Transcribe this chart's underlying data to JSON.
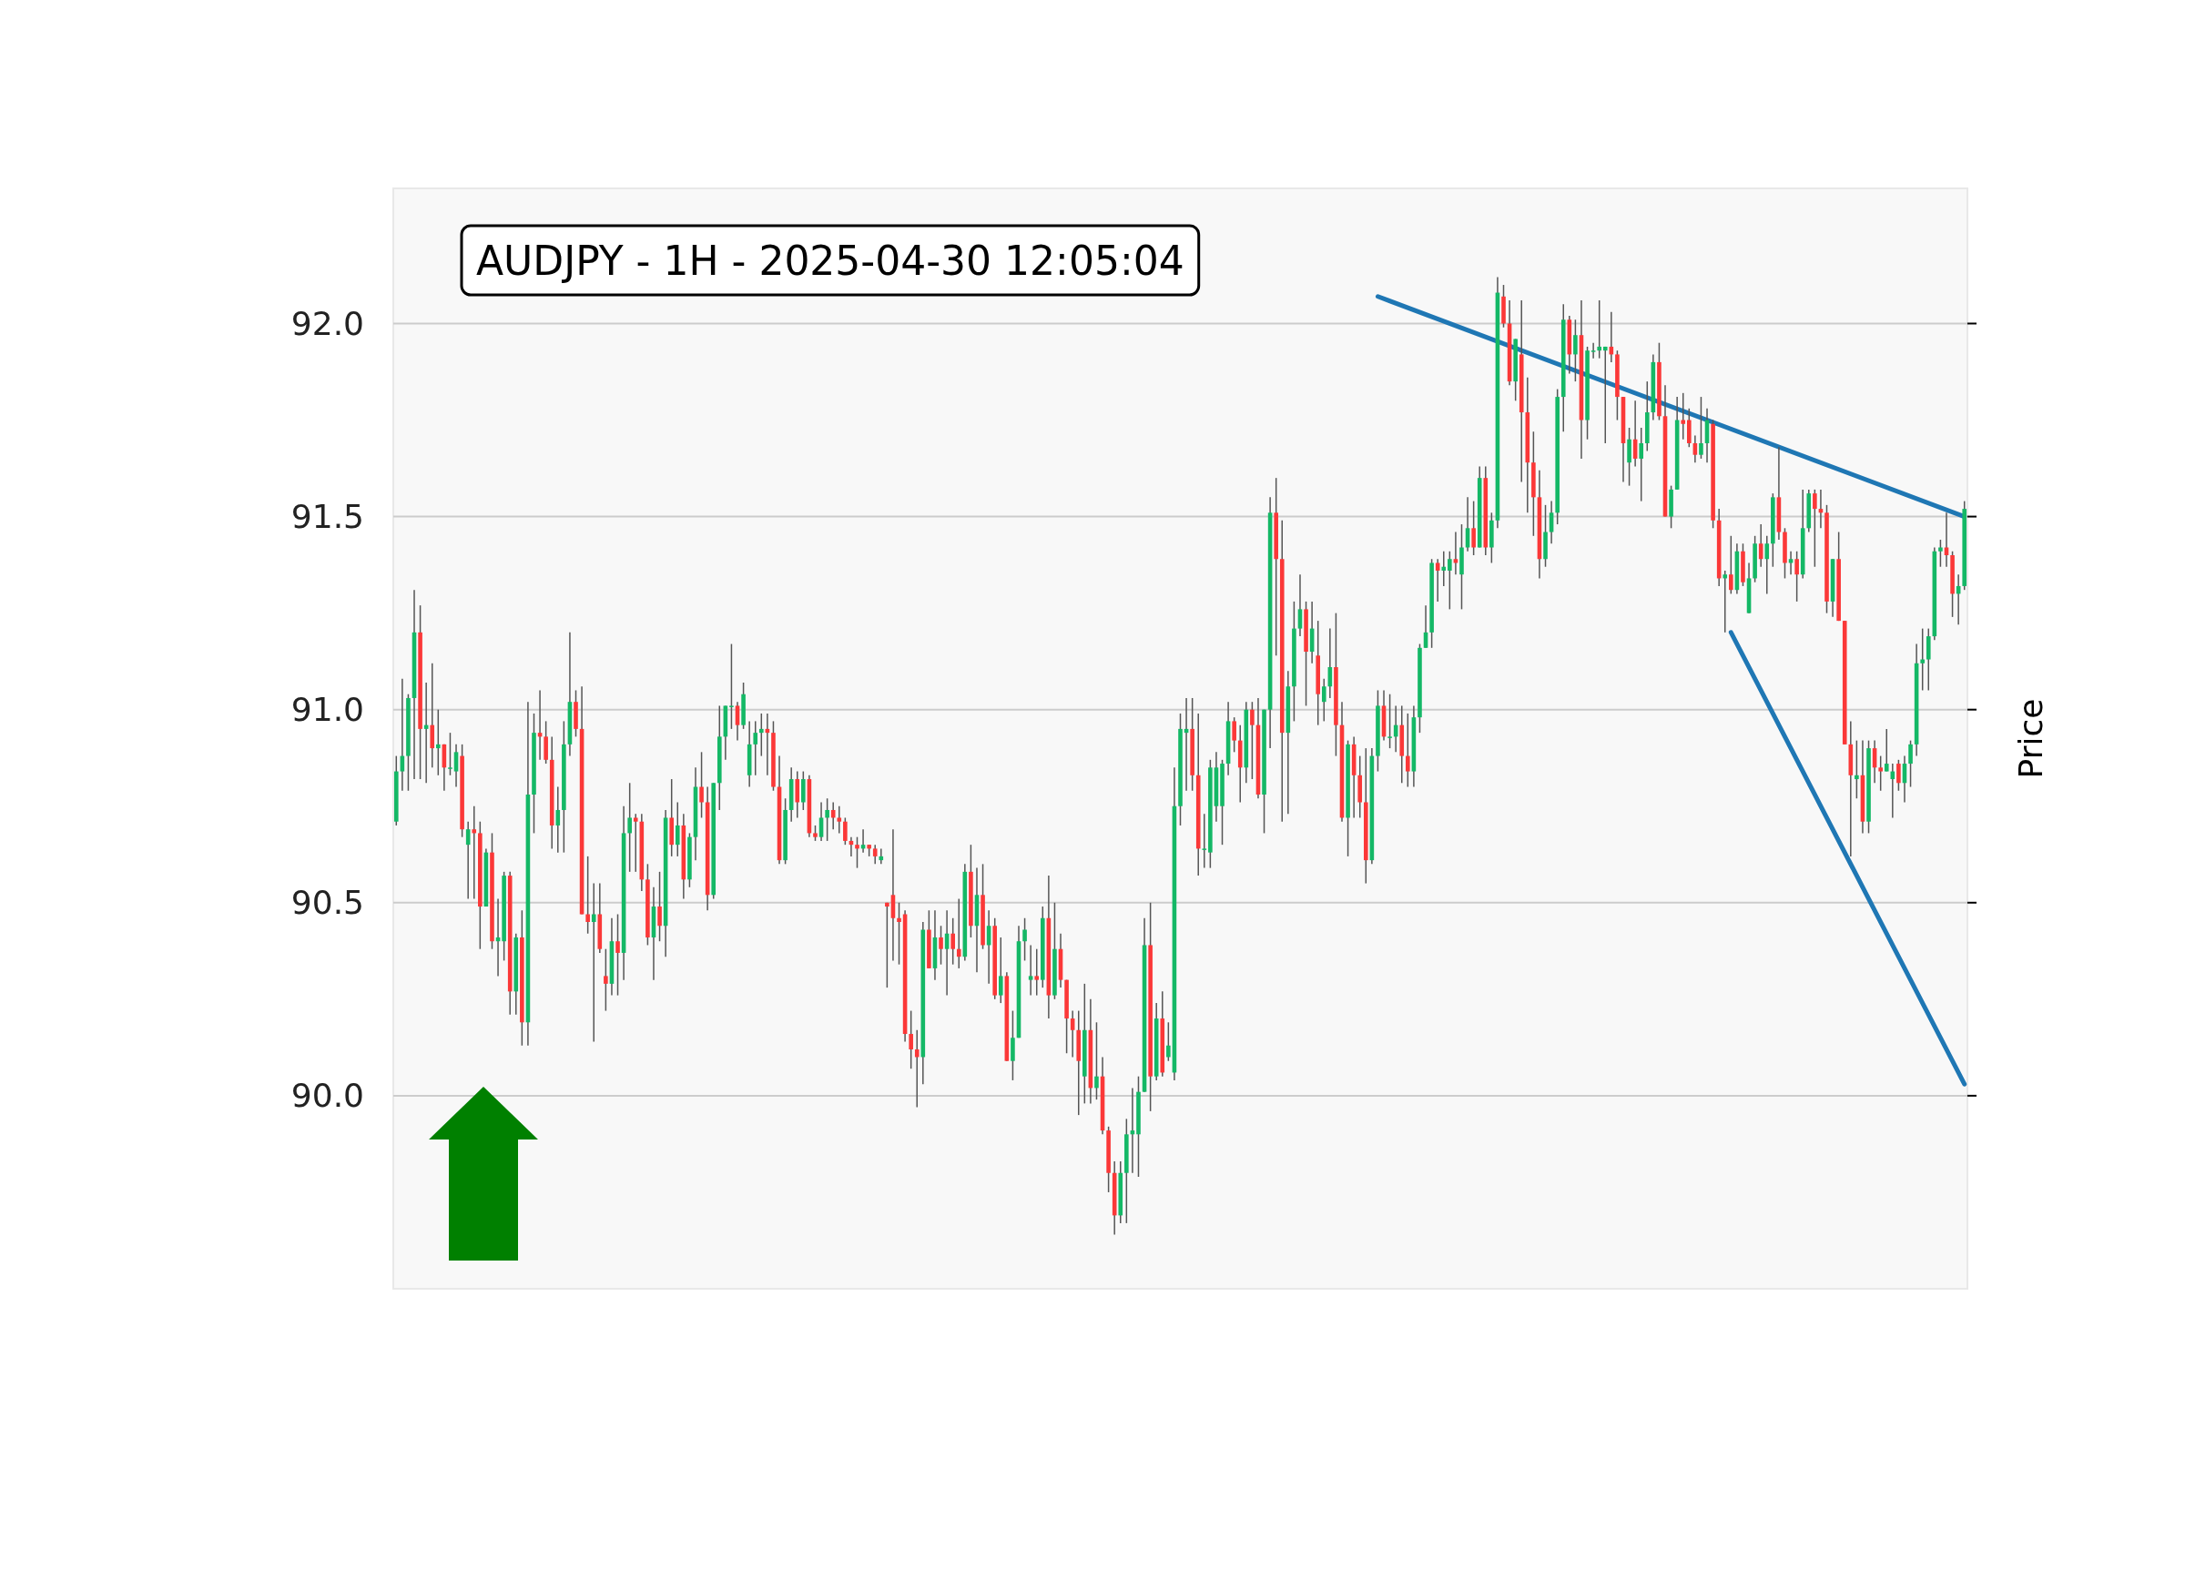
{
  "chart_data": {
    "type": "candlestick",
    "title": "AUDJPY - 1H - 2025-04-30 12:05:04",
    "ylabel": "Price",
    "ylim": [
      89.5,
      92.35
    ],
    "yticks": [
      {
        "value": 90,
        "label": "90.0"
      },
      {
        "value": 90.5,
        "label": "90.5"
      },
      {
        "value": 91,
        "label": "91.0"
      },
      {
        "value": 91.5,
        "label": "91.5"
      },
      {
        "value": 92,
        "label": "92.0"
      }
    ],
    "grid": "y",
    "tick_labels": "y",
    "categories": [
      null,
      null,
      null,
      null,
      null,
      null,
      null,
      null,
      null,
      null,
      null,
      null,
      null,
      null,
      null,
      null,
      null,
      null,
      null,
      null,
      null,
      null,
      null,
      null,
      null,
      null,
      null,
      null,
      null,
      null,
      null,
      null,
      null,
      null,
      null,
      null,
      null,
      null,
      null,
      null,
      null,
      null,
      null,
      null,
      null,
      null,
      null,
      null,
      null,
      null,
      null,
      null,
      null,
      null,
      null,
      null,
      null,
      null,
      null,
      null,
      null,
      null,
      null,
      null,
      null,
      null,
      null,
      null,
      null,
      null,
      null,
      null,
      null,
      null,
      null,
      null,
      null,
      null,
      null,
      null,
      null,
      null,
      null,
      null,
      null,
      null,
      null,
      null,
      null,
      null,
      null,
      null,
      null,
      null,
      null,
      null,
      null,
      null,
      null,
      null,
      null,
      null,
      null,
      null,
      null,
      null,
      null,
      null,
      null,
      null,
      null,
      null,
      null,
      null,
      null,
      null,
      null,
      null,
      null,
      null,
      null,
      null,
      null,
      null,
      null,
      null,
      null,
      null,
      null,
      null,
      null,
      null,
      null,
      null,
      null,
      null,
      null,
      null,
      null,
      null,
      null,
      null,
      null,
      null,
      null,
      null,
      null,
      null,
      null,
      null,
      null,
      null,
      null,
      null,
      null,
      null,
      null,
      null,
      null,
      null,
      null,
      null,
      null,
      null,
      null,
      null,
      null,
      null,
      null,
      null,
      null,
      null,
      null,
      null,
      null,
      null,
      null,
      null,
      null,
      null,
      null,
      null,
      null,
      null,
      null,
      null,
      null,
      null,
      null,
      null,
      null,
      null,
      null,
      null,
      null,
      null,
      null,
      null,
      null,
      null,
      null,
      null,
      null,
      null,
      null,
      null,
      null,
      null,
      null,
      null,
      null,
      null,
      null,
      null,
      null,
      null,
      null,
      null,
      null,
      null,
      null,
      null,
      null,
      null,
      null,
      null,
      null,
      null,
      null,
      null,
      null,
      null,
      null,
      null,
      null,
      null,
      null,
      null,
      null,
      null,
      null,
      null,
      null,
      null,
      null,
      null,
      null,
      null,
      null,
      null,
      null,
      null,
      null,
      null,
      null,
      null,
      null,
      null,
      null,
      null,
      null,
      null,
      null
    ],
    "ohlc": [
      [
        90.71,
        90.88,
        90.7,
        90.84
      ],
      [
        90.84,
        91.08,
        90.79,
        90.88
      ],
      [
        90.88,
        91.04,
        90.79,
        91.03
      ],
      [
        91.03,
        91.31,
        90.82,
        91.2
      ],
      [
        91.2,
        91.27,
        90.82,
        90.95
      ],
      [
        90.95,
        91.07,
        90.81,
        90.96
      ],
      [
        90.96,
        91.12,
        90.85,
        90.9
      ],
      [
        90.9,
        91.0,
        90.83,
        90.91
      ],
      [
        90.91,
        90.91,
        90.79,
        90.85
      ],
      [
        90.85,
        90.94,
        90.83,
        90.85
      ],
      [
        90.84,
        90.91,
        90.8,
        90.89
      ],
      [
        90.88,
        90.91,
        90.67,
        90.69
      ],
      [
        90.65,
        90.71,
        90.51,
        90.69
      ],
      [
        90.69,
        90.75,
        90.51,
        90.68
      ],
      [
        90.68,
        90.71,
        90.38,
        90.49
      ],
      [
        90.49,
        90.64,
        90.49,
        90.63
      ],
      [
        90.63,
        90.68,
        90.38,
        90.4
      ],
      [
        90.4,
        90.51,
        90.31,
        90.41
      ],
      [
        90.4,
        90.58,
        90.35,
        90.57
      ],
      [
        90.57,
        90.58,
        90.21,
        90.27
      ],
      [
        90.27,
        90.42,
        90.21,
        90.41
      ],
      [
        90.41,
        90.48,
        90.13,
        90.19
      ],
      [
        90.19,
        91.02,
        90.13,
        90.78
      ],
      [
        90.78,
        90.99,
        90.68,
        90.94
      ],
      [
        90.94,
        91.05,
        90.87,
        90.93
      ],
      [
        90.93,
        90.97,
        90.86,
        90.87
      ],
      [
        90.87,
        90.93,
        90.64,
        90.7
      ],
      [
        90.7,
        90.8,
        90.63,
        90.74
      ],
      [
        90.74,
        90.97,
        90.63,
        90.91
      ],
      [
        90.91,
        91.2,
        90.88,
        91.02
      ],
      [
        91.02,
        91.05,
        90.93,
        90.95
      ],
      [
        90.95,
        91.06,
        90.47,
        90.47
      ],
      [
        90.47,
        90.62,
        90.42,
        90.45
      ],
      [
        90.45,
        90.55,
        90.14,
        90.47
      ],
      [
        90.47,
        90.55,
        90.37,
        90.38
      ],
      [
        90.31,
        90.38,
        90.22,
        90.29
      ],
      [
        90.29,
        90.46,
        90.26,
        90.4
      ],
      [
        90.4,
        90.47,
        90.26,
        90.37
      ],
      [
        90.37,
        90.75,
        90.3,
        90.68
      ],
      [
        90.68,
        90.81,
        90.58,
        90.72
      ],
      [
        90.72,
        90.73,
        90.58,
        90.71
      ],
      [
        90.71,
        90.73,
        90.53,
        90.56
      ],
      [
        90.56,
        90.6,
        90.39,
        90.41
      ],
      [
        90.41,
        90.54,
        90.3,
        90.49
      ],
      [
        90.49,
        90.58,
        90.4,
        90.44
      ],
      [
        90.44,
        90.74,
        90.36,
        90.72
      ],
      [
        90.72,
        90.82,
        90.62,
        90.65
      ],
      [
        90.65,
        90.76,
        90.62,
        90.7
      ],
      [
        90.7,
        90.73,
        90.51,
        90.56
      ],
      [
        90.56,
        90.68,
        90.54,
        90.67
      ],
      [
        90.67,
        90.85,
        90.61,
        90.8
      ],
      [
        90.8,
        90.89,
        90.72,
        90.76
      ],
      [
        90.76,
        90.8,
        90.48,
        90.52
      ],
      [
        90.52,
        90.81,
        90.51,
        90.81
      ],
      [
        90.81,
        91.01,
        90.74,
        90.93
      ],
      [
        90.93,
        91.01,
        90.87,
        91.01
      ],
      [
        91.01,
        91.17,
        90.95,
        91.01
      ],
      [
        91.01,
        91.02,
        90.92,
        90.96
      ],
      [
        90.96,
        91.07,
        90.95,
        91.04
      ],
      [
        90.83,
        90.97,
        90.8,
        90.91
      ],
      [
        90.91,
        90.97,
        90.83,
        90.94
      ],
      [
        90.94,
        90.99,
        90.88,
        90.95
      ],
      [
        90.95,
        90.99,
        90.83,
        90.94
      ],
      [
        90.94,
        90.97,
        90.79,
        90.8
      ],
      [
        90.8,
        90.88,
        90.6,
        90.61
      ],
      [
        90.61,
        90.77,
        90.6,
        90.74
      ],
      [
        90.74,
        90.85,
        90.71,
        90.82
      ],
      [
        90.82,
        90.84,
        90.72,
        90.76
      ],
      [
        90.76,
        90.84,
        90.74,
        90.82
      ],
      [
        90.82,
        90.83,
        90.67,
        90.68
      ],
      [
        90.68,
        90.7,
        90.66,
        90.67
      ],
      [
        90.67,
        90.76,
        90.66,
        90.72
      ],
      [
        90.72,
        90.77,
        90.66,
        90.74
      ],
      [
        90.74,
        90.76,
        90.69,
        90.72
      ],
      [
        90.72,
        90.75,
        90.68,
        90.71
      ],
      [
        90.71,
        90.72,
        90.65,
        90.66
      ],
      [
        90.66,
        90.67,
        90.62,
        90.65
      ],
      [
        90.65,
        90.67,
        90.59,
        90.64
      ],
      [
        90.64,
        90.69,
        90.63,
        90.65
      ],
      [
        90.65,
        90.65,
        90.62,
        90.64
      ],
      [
        90.64,
        90.65,
        90.6,
        90.62
      ],
      [
        90.61,
        90.64,
        90.6,
        90.62
      ],
      [
        90.5,
        90.5,
        90.28,
        90.49
      ],
      [
        90.52,
        90.69,
        90.35,
        90.46
      ],
      [
        90.46,
        90.5,
        90.34,
        90.45
      ],
      [
        90.47,
        90.48,
        90.14,
        90.16
      ],
      [
        90.16,
        90.22,
        90.07,
        90.12
      ],
      [
        90.12,
        90.17,
        89.97,
        90.1
      ],
      [
        90.1,
        90.45,
        90.03,
        90.43
      ],
      [
        90.43,
        90.48,
        90.33,
        90.33
      ],
      [
        90.33,
        90.48,
        90.3,
        90.41
      ],
      [
        90.41,
        90.44,
        90.34,
        90.38
      ],
      [
        90.38,
        90.48,
        90.26,
        90.42
      ],
      [
        90.42,
        90.46,
        90.34,
        90.38
      ],
      [
        90.38,
        90.51,
        90.33,
        90.36
      ],
      [
        90.36,
        90.6,
        90.35,
        90.58
      ],
      [
        90.58,
        90.65,
        90.41,
        90.44
      ],
      [
        90.44,
        90.59,
        90.32,
        90.52
      ],
      [
        90.52,
        90.6,
        90.38,
        90.39
      ],
      [
        90.39,
        90.48,
        90.29,
        90.44
      ],
      [
        90.44,
        90.46,
        90.25,
        90.26
      ],
      [
        90.26,
        90.41,
        90.24,
        90.31
      ],
      [
        90.31,
        90.32,
        90.09,
        90.09
      ],
      [
        90.09,
        90.22,
        90.04,
        90.15
      ],
      [
        90.15,
        90.44,
        90.15,
        90.4
      ],
      [
        90.4,
        90.46,
        90.35,
        90.43
      ],
      [
        90.3,
        90.39,
        90.26,
        90.31
      ],
      [
        90.31,
        90.38,
        90.26,
        90.3
      ],
      [
        90.3,
        90.49,
        90.28,
        90.46
      ],
      [
        90.46,
        90.57,
        90.2,
        90.26
      ],
      [
        90.26,
        90.5,
        90.25,
        90.38
      ],
      [
        90.38,
        90.42,
        90.28,
        90.3
      ],
      [
        90.3,
        90.3,
        90.11,
        90.2
      ],
      [
        90.2,
        90.22,
        90.1,
        90.17
      ],
      [
        90.17,
        90.22,
        89.95,
        90.09
      ],
      [
        90.05,
        90.29,
        89.98,
        90.17
      ],
      [
        90.17,
        90.25,
        89.98,
        90.02
      ],
      [
        90.02,
        90.19,
        89.99,
        90.05
      ],
      [
        90.05,
        90.1,
        89.9,
        89.91
      ],
      [
        89.91,
        89.92,
        89.75,
        89.8
      ],
      [
        89.8,
        89.83,
        89.64,
        89.69
      ],
      [
        89.69,
        89.83,
        89.67,
        89.8
      ],
      [
        89.8,
        89.94,
        89.67,
        89.9
      ],
      [
        89.9,
        90.02,
        89.8,
        89.91
      ],
      [
        89.9,
        90.05,
        89.79,
        90.01
      ],
      [
        90.01,
        90.46,
        90.01,
        90.39
      ],
      [
        90.39,
        90.5,
        89.96,
        90.05
      ],
      [
        90.05,
        90.24,
        90.04,
        90.2
      ],
      [
        90.2,
        90.27,
        90.05,
        90.06
      ],
      [
        90.1,
        90.19,
        90.09,
        90.13
      ],
      [
        90.06,
        90.85,
        90.04,
        90.75
      ],
      [
        90.75,
        90.99,
        90.7,
        90.95
      ],
      [
        90.94,
        91.03,
        90.79,
        90.95
      ],
      [
        90.95,
        91.03,
        90.79,
        90.83
      ],
      [
        90.83,
        90.99,
        90.57,
        90.64
      ],
      [
        90.64,
        90.73,
        90.59,
        90.64
      ],
      [
        90.63,
        90.87,
        90.59,
        90.85
      ],
      [
        90.75,
        90.89,
        90.71,
        90.85
      ],
      [
        90.75,
        90.87,
        90.65,
        90.86
      ],
      [
        90.86,
        91.02,
        90.83,
        90.97
      ],
      [
        90.97,
        90.98,
        90.89,
        90.92
      ],
      [
        90.92,
        90.96,
        90.76,
        90.85
      ],
      [
        90.85,
        91.02,
        90.81,
        91.0
      ],
      [
        91.0,
        91.02,
        90.82,
        90.96
      ],
      [
        90.96,
        91.03,
        90.77,
        90.78
      ],
      [
        90.78,
        91.0,
        90.68,
        91.0
      ],
      [
        91.0,
        91.55,
        90.9,
        91.51
      ],
      [
        91.51,
        91.6,
        91.14,
        91.39
      ],
      [
        91.39,
        91.49,
        90.71,
        90.94
      ],
      [
        90.94,
        91.1,
        90.73,
        91.06
      ],
      [
        91.06,
        91.28,
        90.97,
        91.21
      ],
      [
        91.21,
        91.35,
        91.19,
        91.26
      ],
      [
        91.26,
        91.28,
        91.01,
        91.15
      ],
      [
        91.15,
        91.28,
        91.12,
        91.21
      ],
      [
        91.14,
        91.23,
        90.96,
        91.04
      ],
      [
        91.02,
        91.08,
        90.97,
        91.06
      ],
      [
        91.06,
        91.21,
        91.03,
        91.11
      ],
      [
        91.11,
        91.25,
        90.88,
        90.96
      ],
      [
        90.96,
        91.02,
        90.71,
        90.72
      ],
      [
        90.72,
        90.92,
        90.62,
        90.91
      ],
      [
        90.91,
        90.93,
        90.72,
        90.83
      ],
      [
        90.83,
        90.88,
        90.72,
        90.76
      ],
      [
        90.76,
        90.9,
        90.55,
        90.61
      ],
      [
        90.61,
        90.9,
        90.6,
        90.88
      ],
      [
        90.88,
        91.05,
        90.84,
        91.01
      ],
      [
        91.01,
        91.05,
        90.92,
        90.93
      ],
      [
        90.93,
        91.04,
        90.9,
        90.93
      ],
      [
        90.93,
        91.01,
        90.89,
        90.96
      ],
      [
        90.96,
        91.01,
        90.81,
        90.88
      ],
      [
        90.88,
        90.99,
        90.8,
        90.84
      ],
      [
        90.84,
        91.01,
        90.8,
        90.98
      ],
      [
        90.98,
        91.17,
        90.94,
        91.16
      ],
      [
        91.16,
        91.27,
        91.16,
        91.2
      ],
      [
        91.2,
        91.39,
        91.16,
        91.38
      ],
      [
        91.38,
        91.39,
        91.28,
        91.36
      ],
      [
        91.36,
        91.41,
        91.32,
        91.37
      ],
      [
        91.36,
        91.41,
        91.26,
        91.39
      ],
      [
        91.39,
        91.46,
        91.35,
        91.38
      ],
      [
        91.35,
        91.48,
        91.26,
        91.42
      ],
      [
        91.42,
        91.55,
        91.41,
        91.47
      ],
      [
        91.47,
        91.54,
        91.4,
        91.42
      ],
      [
        91.42,
        91.63,
        91.42,
        91.6
      ],
      [
        91.6,
        91.63,
        91.4,
        91.42
      ],
      [
        91.42,
        91.51,
        91.38,
        91.49
      ],
      [
        91.49,
        92.12,
        91.47,
        92.08
      ],
      [
        92.07,
        92.1,
        91.99,
        92.0
      ],
      [
        92.0,
        92.06,
        91.84,
        91.85
      ],
      [
        91.85,
        91.96,
        91.8,
        91.96
      ],
      [
        91.92,
        92.06,
        91.59,
        91.77
      ],
      [
        91.77,
        91.86,
        91.51,
        91.64
      ],
      [
        91.64,
        91.72,
        91.45,
        91.55
      ],
      [
        91.55,
        91.62,
        91.34,
        91.39
      ],
      [
        91.39,
        91.53,
        91.37,
        91.46
      ],
      [
        91.46,
        91.54,
        91.43,
        91.51
      ],
      [
        91.51,
        91.83,
        91.48,
        91.81
      ],
      [
        91.81,
        92.05,
        91.72,
        92.01
      ],
      [
        92.01,
        92.02,
        91.87,
        91.92
      ],
      [
        91.92,
        92.01,
        91.85,
        91.97
      ],
      [
        91.97,
        92.06,
        91.65,
        91.75
      ],
      [
        91.75,
        91.94,
        91.7,
        91.93
      ],
      [
        91.93,
        91.95,
        91.91,
        91.93
      ],
      [
        91.93,
        92.06,
        91.91,
        91.94
      ],
      [
        91.93,
        91.94,
        91.69,
        91.94
      ],
      [
        91.94,
        92.03,
        91.9,
        91.92
      ],
      [
        91.92,
        91.93,
        91.75,
        91.81
      ],
      [
        91.81,
        91.81,
        91.59,
        91.69
      ],
      [
        91.64,
        91.73,
        91.58,
        91.7
      ],
      [
        91.7,
        91.8,
        91.63,
        91.65
      ],
      [
        91.65,
        91.73,
        91.54,
        91.69
      ],
      [
        91.69,
        91.85,
        91.67,
        91.77
      ],
      [
        91.77,
        91.92,
        91.75,
        91.9
      ],
      [
        91.9,
        91.95,
        91.75,
        91.76
      ],
      [
        91.76,
        91.84,
        91.5,
        91.5
      ],
      [
        91.5,
        91.58,
        91.47,
        91.57
      ],
      [
        91.57,
        91.81,
        91.57,
        91.75
      ],
      [
        91.75,
        91.82,
        91.7,
        91.74
      ],
      [
        91.75,
        91.78,
        91.68,
        91.69
      ],
      [
        91.69,
        91.71,
        91.64,
        91.66
      ],
      [
        91.66,
        91.81,
        91.65,
        91.69
      ],
      [
        91.69,
        91.78,
        91.64,
        91.75
      ],
      [
        91.74,
        91.75,
        91.47,
        91.49
      ],
      [
        91.49,
        91.52,
        91.32,
        91.34
      ],
      [
        91.34,
        91.36,
        91.2,
        91.35
      ],
      [
        91.35,
        91.45,
        91.3,
        91.31
      ],
      [
        91.31,
        91.43,
        91.3,
        91.41
      ],
      [
        91.41,
        91.43,
        91.32,
        91.33
      ],
      [
        91.25,
        91.38,
        91.25,
        91.34
      ],
      [
        91.34,
        91.45,
        91.33,
        91.43
      ],
      [
        91.43,
        91.48,
        91.37,
        91.39
      ],
      [
        91.39,
        91.45,
        91.3,
        91.43
      ],
      [
        91.43,
        91.56,
        91.37,
        91.55
      ],
      [
        91.55,
        91.68,
        91.44,
        91.46
      ],
      [
        91.46,
        91.47,
        91.34,
        91.38
      ],
      [
        91.38,
        91.41,
        91.35,
        91.39
      ],
      [
        91.39,
        91.41,
        91.28,
        91.35
      ],
      [
        91.35,
        91.57,
        91.34,
        91.47
      ],
      [
        91.47,
        91.57,
        91.46,
        91.56
      ],
      [
        91.56,
        91.57,
        91.37,
        91.52
      ],
      [
        91.52,
        91.57,
        91.47,
        91.51
      ],
      [
        91.51,
        91.53,
        91.25,
        91.28
      ],
      [
        91.28,
        91.39,
        91.24,
        91.39
      ],
      [
        91.39,
        91.46,
        91.23,
        91.23
      ],
      [
        91.23,
        91.23,
        90.91,
        90.91
      ],
      [
        90.91,
        90.97,
        90.62,
        90.83
      ],
      [
        90.82,
        90.92,
        90.77,
        90.83
      ],
      [
        90.83,
        90.92,
        90.68,
        90.71
      ],
      [
        90.71,
        90.92,
        90.68,
        90.9
      ],
      [
        90.9,
        90.92,
        90.81,
        90.85
      ],
      [
        90.85,
        90.88,
        90.79,
        90.84
      ],
      [
        90.84,
        90.95,
        90.84,
        90.86
      ],
      [
        90.82,
        90.86,
        90.72,
        90.84
      ],
      [
        90.86,
        90.87,
        90.79,
        90.81
      ],
      [
        90.81,
        90.88,
        90.76,
        90.86
      ],
      [
        90.86,
        90.92,
        90.8,
        90.91
      ],
      [
        90.91,
        91.17,
        90.88,
        91.12
      ],
      [
        91.12,
        91.21,
        91.05,
        91.13
      ],
      [
        91.13,
        91.21,
        91.05,
        91.19
      ],
      [
        91.19,
        91.42,
        91.18,
        91.41
      ],
      [
        91.41,
        91.44,
        91.37,
        91.42
      ],
      [
        91.42,
        91.51,
        91.37,
        91.4
      ],
      [
        91.4,
        91.41,
        91.24,
        91.3
      ],
      [
        91.3,
        91.35,
        91.22,
        91.32
      ],
      [
        91.32,
        91.54,
        91.31,
        91.52
      ]
    ],
    "series": [
      {
        "type": "line",
        "color": "#1f77b4",
        "values": [
          null,
          null,
          null,
          null,
          null,
          null,
          null,
          null,
          null,
          null,
          null,
          null,
          null,
          null,
          null,
          null,
          null,
          null,
          null,
          null,
          null,
          null,
          null,
          null,
          null,
          null,
          null,
          null,
          null,
          null,
          null,
          null,
          null,
          null,
          null,
          null,
          null,
          null,
          null,
          null,
          null,
          null,
          null,
          null,
          null,
          null,
          null,
          null,
          null,
          null,
          null,
          null,
          null,
          null,
          null,
          null,
          null,
          null,
          null,
          null,
          null,
          null,
          null,
          null,
          null,
          null,
          null,
          null,
          null,
          null,
          null,
          null,
          null,
          null,
          null,
          null,
          null,
          null,
          null,
          null,
          null,
          null,
          null,
          null,
          null,
          null,
          null,
          null,
          null,
          null,
          null,
          null,
          null,
          null,
          null,
          null,
          null,
          null,
          null,
          null,
          null,
          null,
          null,
          null,
          null,
          null,
          null,
          null,
          null,
          null,
          null,
          null,
          null,
          null,
          null,
          null,
          null,
          null,
          null,
          null,
          null,
          null,
          null,
          null,
          null,
          null,
          null,
          null,
          null,
          null,
          null,
          null,
          null,
          null,
          null,
          null,
          null,
          null,
          null,
          null,
          null,
          null,
          null,
          null,
          null,
          null,
          null,
          null,
          null,
          null,
          null,
          null,
          null,
          null,
          null,
          null,
          null,
          null,
          null,
          null,
          null,
          null,
          null,
          null,
          92.07,
          null,
          null,
          null,
          null,
          null,
          null,
          null,
          null,
          null,
          null,
          null,
          null,
          null,
          null,
          null,
          null,
          null,
          null,
          null,
          null,
          null,
          null,
          null,
          null,
          null,
          null,
          null,
          null,
          null,
          null,
          null,
          null,
          null,
          null,
          null,
          null,
          null,
          null,
          null,
          null,
          null,
          null,
          null,
          null,
          null,
          null,
          null,
          null,
          null,
          null,
          null,
          null,
          null,
          null,
          null,
          null,
          null,
          null,
          null,
          null,
          null,
          null,
          null,
          null,
          null,
          null,
          null,
          null,
          null,
          null,
          null,
          null,
          null,
          null,
          null,
          null,
          null,
          null,
          null,
          null,
          null,
          null,
          null,
          null,
          null,
          null,
          null,
          null,
          null,
          null,
          null,
          null,
          null,
          null,
          null,
          null,
          null,
          91.5
        ]
      },
      {
        "type": "line",
        "color": "#1f77b4",
        "values": [
          null,
          null,
          null,
          null,
          null,
          null,
          null,
          null,
          null,
          null,
          null,
          null,
          null,
          null,
          null,
          null,
          null,
          null,
          null,
          null,
          null,
          null,
          null,
          null,
          null,
          null,
          null,
          null,
          null,
          null,
          null,
          null,
          null,
          null,
          null,
          null,
          null,
          null,
          null,
          null,
          null,
          null,
          null,
          null,
          null,
          null,
          null,
          null,
          null,
          null,
          null,
          null,
          null,
          null,
          null,
          null,
          null,
          null,
          null,
          null,
          null,
          null,
          null,
          null,
          null,
          null,
          null,
          null,
          null,
          null,
          null,
          null,
          null,
          null,
          null,
          null,
          null,
          null,
          null,
          null,
          null,
          null,
          null,
          null,
          null,
          null,
          null,
          null,
          null,
          null,
          null,
          null,
          null,
          null,
          null,
          null,
          null,
          null,
          null,
          null,
          null,
          null,
          null,
          null,
          null,
          null,
          null,
          null,
          null,
          null,
          null,
          null,
          null,
          null,
          null,
          null,
          null,
          null,
          null,
          null,
          null,
          null,
          null,
          null,
          null,
          null,
          null,
          null,
          null,
          null,
          null,
          null,
          null,
          null,
          null,
          null,
          null,
          null,
          null,
          null,
          null,
          null,
          null,
          null,
          null,
          null,
          null,
          null,
          null,
          null,
          null,
          null,
          null,
          null,
          null,
          null,
          null,
          null,
          null,
          null,
          null,
          null,
          null,
          null,
          null,
          null,
          null,
          null,
          null,
          null,
          null,
          null,
          null,
          null,
          null,
          null,
          null,
          null,
          null,
          null,
          null,
          null,
          null,
          null,
          null,
          null,
          null,
          null,
          null,
          null,
          null,
          null,
          null,
          null,
          null,
          null,
          null,
          null,
          null,
          null,
          null,
          null,
          null,
          null,
          null,
          null,
          null,
          null,
          null,
          null,
          null,
          null,
          null,
          null,
          null,
          null,
          null,
          null,
          null,
          null,
          null,
          null,
          null,
          91.2,
          null,
          null,
          null,
          null,
          null,
          null,
          null,
          null,
          null,
          null,
          null,
          null,
          null,
          null,
          null,
          null,
          null,
          null,
          null,
          null,
          null,
          null,
          null,
          null,
          null,
          null,
          null,
          null,
          null,
          null,
          null,
          null,
          null,
          null,
          null,
          null,
          null,
          null,
          90.03
        ]
      }
    ]
  }
}
